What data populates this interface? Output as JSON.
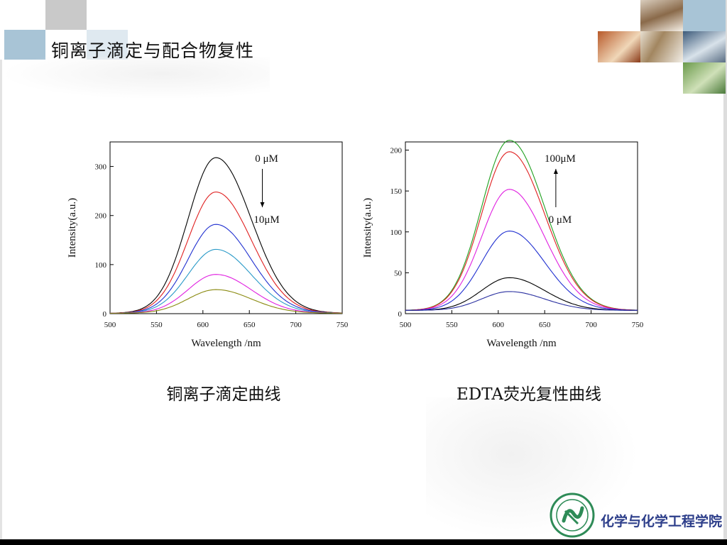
{
  "slide": {
    "title": "铜离子滴定与配合物复性",
    "caption_left": "铜离子滴定曲线",
    "caption_right": "EDTA荧光复性曲线",
    "college_name": "化学与化学工程学院"
  },
  "colors": {
    "accent_blue": "#a8c4d6",
    "college_text": "#2d3e8a",
    "logo_green": "#2e8b57"
  },
  "chart_data": [
    {
      "type": "line",
      "xlabel": "Wavelength /nm",
      "ylabel": "Intensity(a.u.)",
      "xlim": [
        500,
        750
      ],
      "ylim": [
        0,
        350
      ],
      "xticks": [
        500,
        550,
        600,
        650,
        700,
        750
      ],
      "yticks": [
        0,
        100,
        200,
        300
      ],
      "peak_x": 614,
      "annotation_top": "0 μM",
      "annotation_bottom": "10μM",
      "arrow_direction": "down",
      "series": [
        {
          "color": "#000000",
          "peak": 318,
          "baseline": 1
        },
        {
          "color": "#e02020",
          "peak": 248,
          "baseline": 1
        },
        {
          "color": "#2030d0",
          "peak": 182,
          "baseline": 1
        },
        {
          "color": "#2a9ac8",
          "peak": 131,
          "baseline": 1
        },
        {
          "color": "#e020e0",
          "peak": 80,
          "baseline": 1
        },
        {
          "color": "#8a8a10",
          "peak": 49,
          "baseline": 1
        }
      ]
    },
    {
      "type": "line",
      "xlabel": "Wavelength /nm",
      "ylabel": "Intensity(a.u.)",
      "xlim": [
        500,
        750
      ],
      "ylim": [
        0,
        210
      ],
      "xticks": [
        500,
        550,
        600,
        650,
        700,
        750
      ],
      "yticks": [
        0,
        50,
        100,
        150,
        200
      ],
      "peak_x": 612,
      "annotation_top": "100μM",
      "annotation_bottom": "0 μM",
      "arrow_direction": "up",
      "series": [
        {
          "color": "#20a020",
          "peak": 212,
          "baseline": 4
        },
        {
          "color": "#e02020",
          "peak": 198,
          "baseline": 4
        },
        {
          "color": "#e020e0",
          "peak": 152,
          "baseline": 4
        },
        {
          "color": "#2030d0",
          "peak": 101,
          "baseline": 4
        },
        {
          "color": "#000000",
          "peak": 44,
          "baseline": 4
        },
        {
          "color": "#2a30a0",
          "peak": 27,
          "baseline": 4
        }
      ]
    }
  ]
}
